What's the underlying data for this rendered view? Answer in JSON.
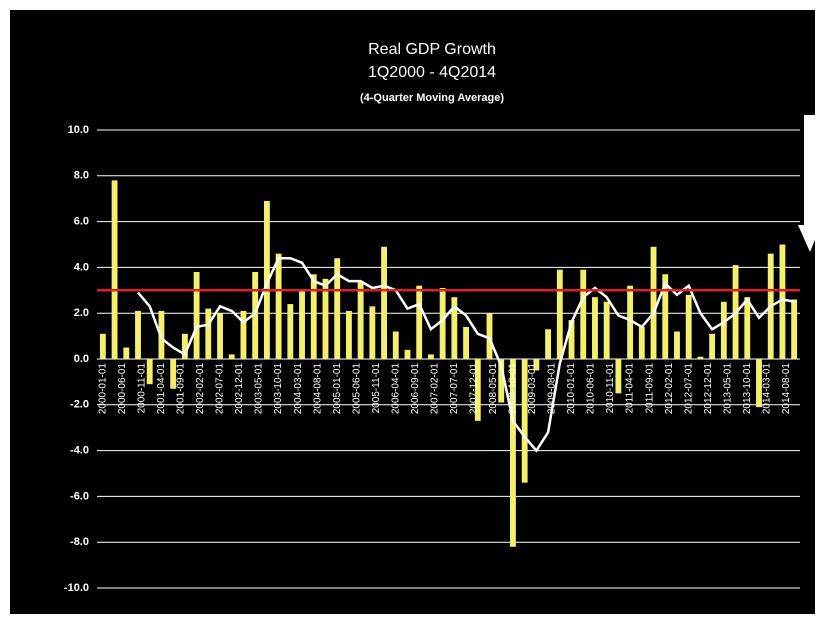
{
  "chart_data": {
    "type": "bar",
    "title": "Real GDP Growth",
    "subtitle": "1Q2000 - 4Q2014",
    "note": "(4-Quarter Moving Average)",
    "x_labels": [
      "2000-01-01",
      "2000-06-01",
      "2000-11-01",
      "2001-04-01",
      "2001-09-01",
      "2002-02-01",
      "2002-07-01",
      "2002-12-01",
      "2003-05-01",
      "2003-10-01",
      "2004-03-01",
      "2004-08-01",
      "2005-01-01",
      "2005-06-01",
      "2005-11-01",
      "2006-04-01",
      "2006-09-01",
      "2007-02-01",
      "2007-07-01",
      "2007-12-01",
      "2008-05-01",
      "2008-10-01",
      "2009-03-01",
      "2009-08-01",
      "2010-01-01",
      "2010-06-01",
      "2010-11-01",
      "2011-04-01",
      "2011-09-01",
      "2012-02-01",
      "2012-07-01",
      "2012-12-01",
      "2013-05-01",
      "2013-10-01",
      "2014-03-01",
      "2014-08-01"
    ],
    "series": [
      {
        "type": "bar",
        "color": "#f5ef6e",
        "values": [
          1.1,
          7.8,
          0.5,
          2.1,
          -1.1,
          2.1,
          -1.3,
          1.1,
          3.8,
          2.2,
          2.0,
          0.2,
          2.1,
          3.8,
          6.9,
          4.6,
          2.4,
          3.0,
          3.7,
          3.5,
          4.4,
          2.1,
          3.4,
          2.3,
          4.9,
          1.2,
          0.4,
          3.2,
          0.2,
          3.1,
          2.7,
          1.4,
          -2.7,
          2.0,
          -1.9,
          -8.2,
          -5.4,
          -0.5,
          1.3,
          3.9,
          1.7,
          3.9,
          2.7,
          2.5,
          -1.5,
          3.2,
          1.4,
          4.9,
          3.7,
          1.2,
          2.8,
          0.1,
          1.1,
          2.5,
          4.1,
          2.7,
          -2.1,
          4.6,
          5.0,
          2.6
        ]
      },
      {
        "type": "line",
        "color": "#ffffff",
        "values": [
          null,
          null,
          null,
          2.9,
          2.3,
          0.9,
          0.5,
          0.2,
          1.4,
          1.5,
          2.3,
          2.1,
          1.6,
          2.0,
          3.3,
          4.4,
          4.4,
          4.2,
          3.4,
          3.2,
          3.7,
          3.4,
          3.4,
          3.1,
          3.2,
          3.0,
          2.2,
          2.4,
          1.3,
          1.7,
          2.3,
          1.9,
          1.1,
          0.9,
          -0.3,
          -2.7,
          -3.4,
          -4.0,
          -3.2,
          -0.2,
          1.6,
          2.7,
          3.1,
          2.7,
          1.9,
          1.7,
          1.4,
          2.0,
          3.3,
          2.8,
          3.2,
          2.0,
          1.3,
          1.6,
          2.0,
          2.6,
          1.8,
          2.3,
          2.6,
          2.5
        ]
      }
    ],
    "reference_line": {
      "value": 3.0,
      "color": "#e02020"
    },
    "ylim": [
      -10,
      10
    ],
    "yticks": [
      {
        "value": -10,
        "label": "-10.0"
      },
      {
        "value": -8,
        "label": "-8.0"
      },
      {
        "value": -6,
        "label": "-6.0"
      },
      {
        "value": -4,
        "label": "-4.0"
      },
      {
        "value": -2,
        "label": "-2.0"
      },
      {
        "value": 0,
        "label": "0.0"
      },
      {
        "value": 2,
        "label": "2.0"
      },
      {
        "value": 4,
        "label": "4.0"
      },
      {
        "value": 6,
        "label": "6.0"
      },
      {
        "value": 8,
        "label": "8.0"
      },
      {
        "value": 10,
        "label": "10.0"
      }
    ],
    "grid": true
  }
}
